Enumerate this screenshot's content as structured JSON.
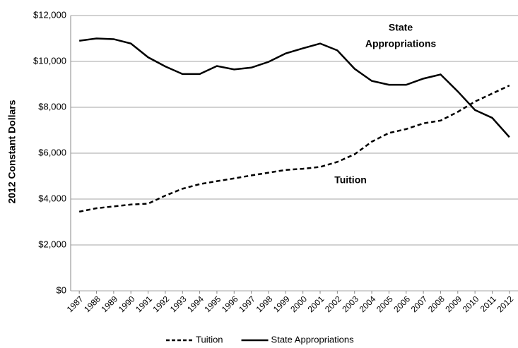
{
  "chart_data": {
    "type": "line",
    "y_axis_label": "2012 Constant Dollars",
    "annotations": [
      {
        "lines": [
          "State",
          "Appropriations"
        ]
      },
      {
        "lines": [
          "Tuition"
        ]
      }
    ],
    "categories": [
      "1987",
      "1988",
      "1989",
      "1990",
      "1991",
      "1992",
      "1993",
      "1994",
      "1995",
      "1996",
      "1997",
      "1998",
      "1999",
      "2000",
      "2001",
      "2002",
      "2003",
      "2004",
      "2005",
      "2006",
      "2007",
      "2008",
      "2009",
      "2010",
      "2011",
      "2012"
    ],
    "series": [
      {
        "name": "Tuition",
        "color": "#000000",
        "dashed": true,
        "values": [
          3450,
          3600,
          3680,
          3760,
          3800,
          4150,
          4450,
          4650,
          4780,
          4900,
          5030,
          5150,
          5270,
          5320,
          5400,
          5620,
          5950,
          6500,
          6880,
          7050,
          7300,
          7420,
          7800,
          8250,
          8600,
          8950
        ]
      },
      {
        "name": "State Appropriations",
        "color": "#000000",
        "dashed": false,
        "values": [
          10900,
          11000,
          10970,
          10780,
          10180,
          9780,
          9450,
          9450,
          9800,
          9650,
          9730,
          9980,
          10350,
          10570,
          10780,
          10480,
          9680,
          9150,
          8980,
          8980,
          9250,
          9430,
          8690,
          7880,
          7540,
          6700
        ]
      }
    ],
    "ylim": [
      0,
      12000
    ],
    "yticks": [
      {
        "value": 0,
        "label": "$0"
      },
      {
        "value": 2000,
        "label": "$2,000"
      },
      {
        "value": 4000,
        "label": "$4,000"
      },
      {
        "value": 6000,
        "label": "$6,000"
      },
      {
        "value": 8000,
        "label": "$8,000"
      },
      {
        "value": 10000,
        "label": "$10,000"
      },
      {
        "value": 12000,
        "label": "$12,000"
      }
    ],
    "grid": true
  }
}
